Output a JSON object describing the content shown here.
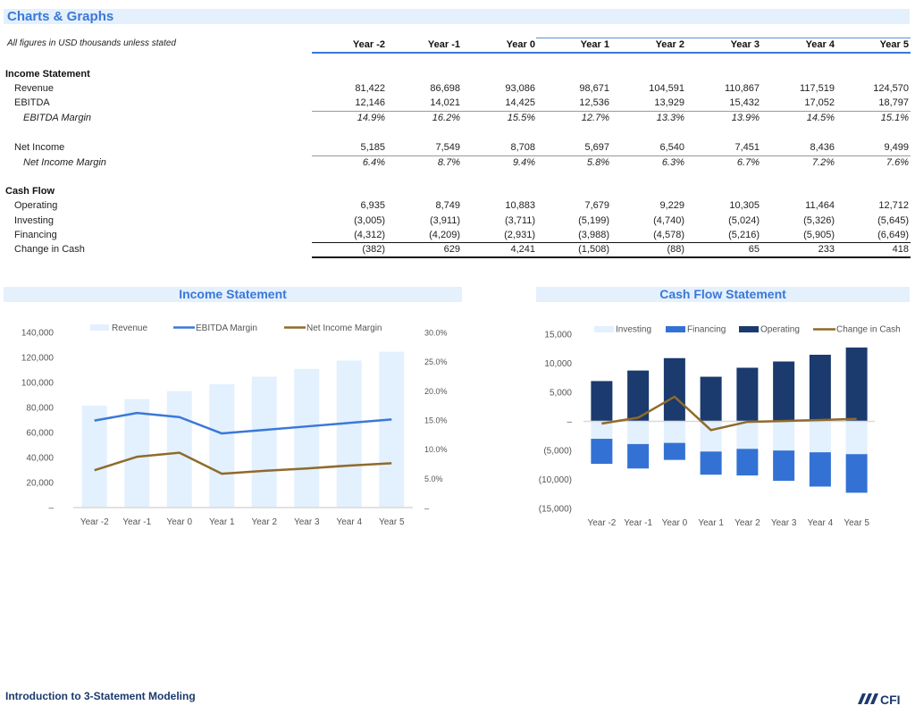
{
  "page": {
    "title": "Charts & Graphs",
    "note": "All figures in USD thousands unless stated",
    "footer_title": "Introduction to 3-Statement Modeling",
    "logo_text": "CFI"
  },
  "table": {
    "years": [
      "Year -2",
      "Year -1",
      "Year 0",
      "Year 1",
      "Year 2",
      "Year 3",
      "Year 4",
      "Year 5"
    ],
    "income_statement": {
      "label": "Income Statement",
      "rows": [
        {
          "label": "Revenue",
          "italic": false,
          "values": [
            "81,422",
            "86,698",
            "93,086",
            "98,671",
            "104,591",
            "110,867",
            "117,519",
            "124,570"
          ]
        },
        {
          "label": "EBITDA",
          "italic": false,
          "values": [
            "12,146",
            "14,021",
            "14,425",
            "12,536",
            "13,929",
            "15,432",
            "17,052",
            "18,797"
          ]
        },
        {
          "label": "EBITDA Margin",
          "italic": true,
          "values": [
            "14.9%",
            "16.2%",
            "15.5%",
            "12.7%",
            "13.3%",
            "13.9%",
            "14.5%",
            "15.1%"
          ]
        },
        {
          "label": "Net Income",
          "italic": false,
          "values": [
            "5,185",
            "7,549",
            "8,708",
            "5,697",
            "6,540",
            "7,451",
            "8,436",
            "9,499"
          ]
        },
        {
          "label": "Net Income Margin",
          "italic": true,
          "values": [
            "6.4%",
            "8.7%",
            "9.4%",
            "5.8%",
            "6.3%",
            "6.7%",
            "7.2%",
            "7.6%"
          ]
        }
      ]
    },
    "cash_flow": {
      "label": "Cash Flow",
      "rows": [
        {
          "label": "Operating",
          "values": [
            "6,935",
            "8,749",
            "10,883",
            "7,679",
            "9,229",
            "10,305",
            "11,464",
            "12,712"
          ]
        },
        {
          "label": "Investing",
          "values": [
            "(3,005)",
            "(3,911)",
            "(3,711)",
            "(5,199)",
            "(4,740)",
            "(5,024)",
            "(5,326)",
            "(5,645)"
          ]
        },
        {
          "label": "Financing",
          "values": [
            "(4,312)",
            "(4,209)",
            "(2,931)",
            "(3,988)",
            "(4,578)",
            "(5,216)",
            "(5,905)",
            "(6,649)"
          ]
        },
        {
          "label": "Change in Cash",
          "values": [
            "(382)",
            "629",
            "4,241",
            "(1,508)",
            "(88)",
            "65",
            "233",
            "418"
          ]
        }
      ]
    }
  },
  "colors": {
    "accent": "#3a78d8",
    "title_bg": "#e4f0fc",
    "revenue_bar": "#e3f0fd",
    "ebitda_line": "#3a78d8",
    "net_income_line": "#8f6a2c",
    "investing": "#e3f0fd",
    "financing": "#3372d4",
    "operating": "#1b3a6e",
    "change_in_cash": "#8f6a2c",
    "footer": "#1c3a6e"
  },
  "chart_data": [
    {
      "type": "bar",
      "title": "Income Statement",
      "categories": [
        "Year -2",
        "Year -1",
        "Year 0",
        "Year 1",
        "Year 2",
        "Year 3",
        "Year 4",
        "Year 5"
      ],
      "series": [
        {
          "name": "Revenue",
          "kind": "bar",
          "axis": "left",
          "values": [
            81422,
            86698,
            93086,
            98671,
            104591,
            110867,
            117519,
            124570
          ]
        },
        {
          "name": "EBITDA Margin",
          "kind": "line",
          "axis": "right",
          "values": [
            14.9,
            16.2,
            15.5,
            12.7,
            13.3,
            13.9,
            14.5,
            15.1
          ]
        },
        {
          "name": "Net Income Margin",
          "kind": "line",
          "axis": "right",
          "values": [
            6.4,
            8.7,
            9.4,
            5.8,
            6.3,
            6.7,
            7.2,
            7.6
          ]
        }
      ],
      "ylim": [
        0,
        140000
      ],
      "y_ticks": [
        0,
        20000,
        40000,
        60000,
        80000,
        100000,
        120000,
        140000
      ],
      "y_tick_labels": [
        "–",
        "20,000",
        "40,000",
        "60,000",
        "80,000",
        "100,000",
        "120,000",
        "140,000"
      ],
      "y2lim": [
        0,
        30
      ],
      "y2_ticks": [
        0,
        5,
        10,
        15,
        20,
        25,
        30
      ],
      "y2_tick_labels": [
        "–",
        "5.0%",
        "10.0%",
        "15.0%",
        "20.0%",
        "25.0%",
        "30.0%"
      ],
      "legend": "top",
      "grid": false,
      "xlabel": "",
      "ylabel": ""
    },
    {
      "type": "bar",
      "stacked": true,
      "title": "Cash Flow Statement",
      "categories": [
        "Year -2",
        "Year -1",
        "Year 0",
        "Year 1",
        "Year 2",
        "Year 3",
        "Year 4",
        "Year 5"
      ],
      "series": [
        {
          "name": "Investing",
          "kind": "bar",
          "values": [
            -3005,
            -3911,
            -3711,
            -5199,
            -4740,
            -5024,
            -5326,
            -5645
          ]
        },
        {
          "name": "Financing",
          "kind": "bar",
          "values": [
            -4312,
            -4209,
            -2931,
            -3988,
            -4578,
            -5216,
            -5905,
            -6649
          ]
        },
        {
          "name": "Operating",
          "kind": "bar",
          "values": [
            6935,
            8749,
            10883,
            7679,
            9229,
            10305,
            11464,
            12712
          ]
        },
        {
          "name": "Change in Cash",
          "kind": "line",
          "values": [
            -382,
            629,
            4241,
            -1508,
            -88,
            65,
            233,
            418
          ]
        }
      ],
      "ylim": [
        -15000,
        15000
      ],
      "y_ticks": [
        -15000,
        -10000,
        -5000,
        0,
        5000,
        10000,
        15000
      ],
      "y_tick_labels": [
        "(15,000)",
        "(10,000)",
        "(5,000)",
        "–",
        "5,000",
        "10,000",
        "15,000"
      ],
      "legend": "top",
      "grid": false,
      "xlabel": "",
      "ylabel": ""
    }
  ]
}
